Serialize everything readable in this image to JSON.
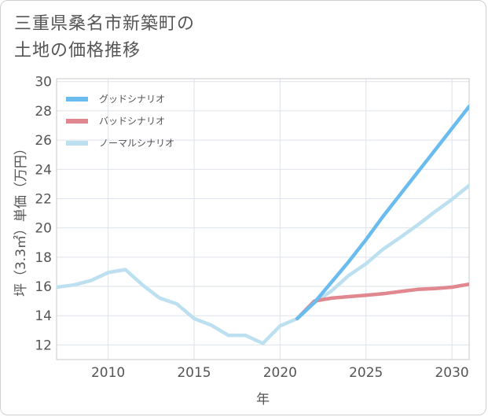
{
  "page": {
    "title": "三重県桑名市新築町の\n土地の価格推移"
  },
  "chart_data": {
    "type": "line",
    "title": "三重県桑名市新築町の土地の価格推移",
    "xlabel": "年",
    "ylabel": "坪（3.3㎡）単価（万円）",
    "xlim": [
      2007,
      2031
    ],
    "ylim": [
      11,
      30.2
    ],
    "xticks": [
      2010,
      2015,
      2020,
      2025,
      2030
    ],
    "yticks": [
      12,
      14,
      16,
      18,
      20,
      22,
      24,
      26,
      28,
      30
    ],
    "grid": true,
    "legend_position": "top-left",
    "series": [
      {
        "name": "グッドシナリオ",
        "color": "#6bbcee",
        "points": [
          [
            2021,
            13.8
          ],
          [
            2022,
            14.9
          ],
          [
            2023,
            16.3
          ],
          [
            2024,
            17.7
          ],
          [
            2025,
            19.2
          ],
          [
            2026,
            20.8
          ],
          [
            2027,
            22.3
          ],
          [
            2028,
            23.8
          ],
          [
            2029,
            25.3
          ],
          [
            2030,
            26.8
          ],
          [
            2031,
            28.3
          ]
        ]
      },
      {
        "name": "バッドシナリオ",
        "color": "#e0878f",
        "points": [
          [
            2021,
            13.8
          ],
          [
            2022,
            15.0
          ],
          [
            2023,
            15.2
          ],
          [
            2024,
            15.3
          ],
          [
            2025,
            15.4
          ],
          [
            2026,
            15.5
          ],
          [
            2027,
            15.65
          ],
          [
            2028,
            15.8
          ],
          [
            2029,
            15.85
          ],
          [
            2030,
            15.95
          ],
          [
            2031,
            16.15
          ]
        ]
      },
      {
        "name": "ノーマルシナリオ",
        "color": "#bde0f0",
        "points": [
          [
            2007,
            15.95
          ],
          [
            2008,
            16.1
          ],
          [
            2009,
            16.4
          ],
          [
            2010,
            16.95
          ],
          [
            2011,
            17.15
          ],
          [
            2012,
            16.1
          ],
          [
            2013,
            15.2
          ],
          [
            2014,
            14.8
          ],
          [
            2015,
            13.8
          ],
          [
            2016,
            13.35
          ],
          [
            2017,
            12.65
          ],
          [
            2018,
            12.65
          ],
          [
            2019,
            12.1
          ],
          [
            2020,
            13.3
          ],
          [
            2021,
            13.8
          ],
          [
            2022,
            14.9
          ],
          [
            2023,
            15.7
          ],
          [
            2024,
            16.75
          ],
          [
            2025,
            17.55
          ],
          [
            2026,
            18.55
          ],
          [
            2027,
            19.35
          ],
          [
            2028,
            20.2
          ],
          [
            2029,
            21.1
          ],
          [
            2030,
            21.95
          ],
          [
            2031,
            22.9
          ]
        ]
      }
    ]
  }
}
